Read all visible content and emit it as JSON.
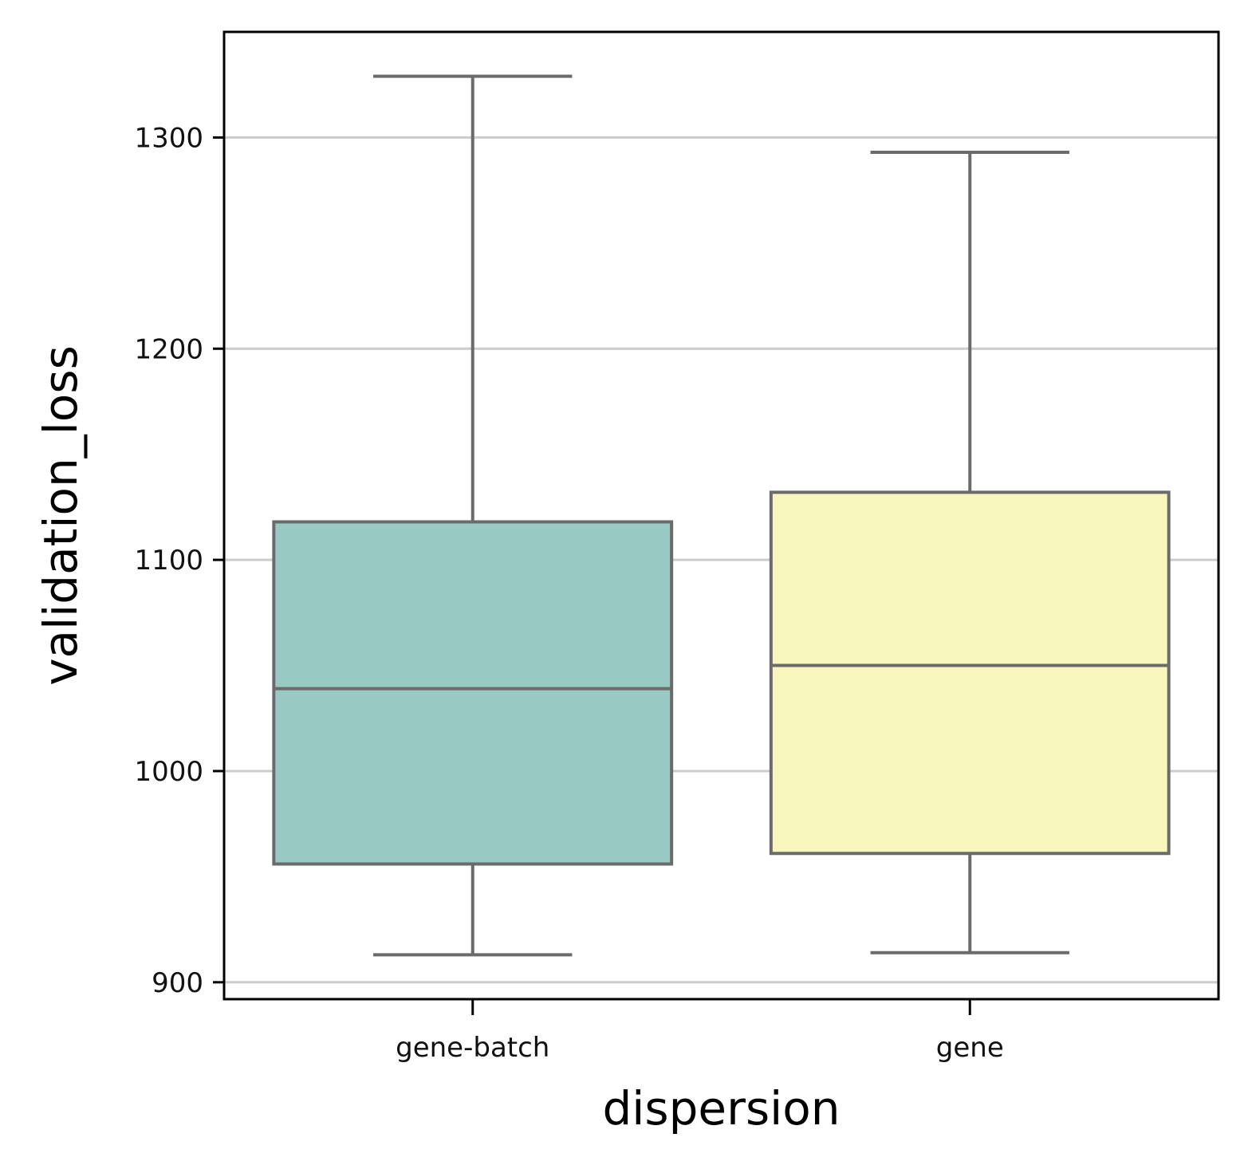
{
  "chart_data": {
    "type": "box",
    "xlabel": "dispersion",
    "ylabel": "validation_loss",
    "ylim": [
      892,
      1350
    ],
    "yticks": [
      900,
      1000,
      1100,
      1200,
      1300
    ],
    "ytick_labels": [
      "900",
      "1000",
      "1100",
      "1200",
      "1300"
    ],
    "grid": "horizontal",
    "categories": [
      "gene-batch",
      "gene"
    ],
    "boxes": [
      {
        "category": "gene-batch",
        "whisker_low": 913,
        "q1": 956,
        "median": 1039,
        "q3": 1118,
        "whisker_high": 1329,
        "color": "#98c9c2"
      },
      {
        "category": "gene",
        "whisker_low": 914,
        "q1": 961,
        "median": 1050,
        "q3": 1132,
        "whisker_high": 1293,
        "color": "#f7f6bd"
      }
    ],
    "line_color": "#6b6b6b",
    "grid_color": "#cccccc"
  }
}
